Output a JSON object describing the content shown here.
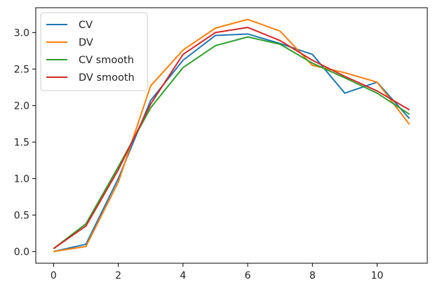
{
  "chart_data": {
    "type": "line",
    "title": "",
    "xlabel": "",
    "ylabel": "",
    "xlim": [
      -0.55,
      11.55
    ],
    "ylim": [
      -0.16,
      3.34
    ],
    "xticks": [
      0,
      2,
      4,
      6,
      8,
      10
    ],
    "xtick_labels": [
      "0",
      "2",
      "4",
      "6",
      "8",
      "10"
    ],
    "yticks": [
      0.0,
      0.5,
      1.0,
      1.5,
      2.0,
      2.5,
      3.0
    ],
    "ytick_labels": [
      "0.0",
      "0.5",
      "1.0",
      "1.5",
      "2.0",
      "2.5",
      "3.0"
    ],
    "grid": false,
    "legend_position": "top-left",
    "x": [
      0,
      1,
      2,
      3,
      4,
      5,
      6,
      7,
      8,
      9,
      10,
      11
    ],
    "series": [
      {
        "name": "CV",
        "color": "#1f77b4",
        "values": [
          0.0,
          0.1,
          1.0,
          2.07,
          2.62,
          2.96,
          2.98,
          2.85,
          2.7,
          2.17,
          2.32,
          1.82
        ]
      },
      {
        "name": "DV",
        "color": "#ff7f0e",
        "values": [
          0.0,
          0.07,
          0.95,
          2.27,
          2.76,
          3.06,
          3.18,
          3.02,
          2.55,
          2.45,
          2.32,
          1.74
        ]
      },
      {
        "name": "CV smooth",
        "color": "#2ca02c",
        "values": [
          0.04,
          0.38,
          1.16,
          1.97,
          2.52,
          2.82,
          2.94,
          2.84,
          2.58,
          2.38,
          2.17,
          1.88
        ]
      },
      {
        "name": "DV smooth",
        "color": "#d62728",
        "values": [
          0.04,
          0.35,
          1.12,
          2.02,
          2.7,
          3.0,
          3.07,
          2.89,
          2.62,
          2.4,
          2.2,
          1.94
        ]
      }
    ]
  }
}
